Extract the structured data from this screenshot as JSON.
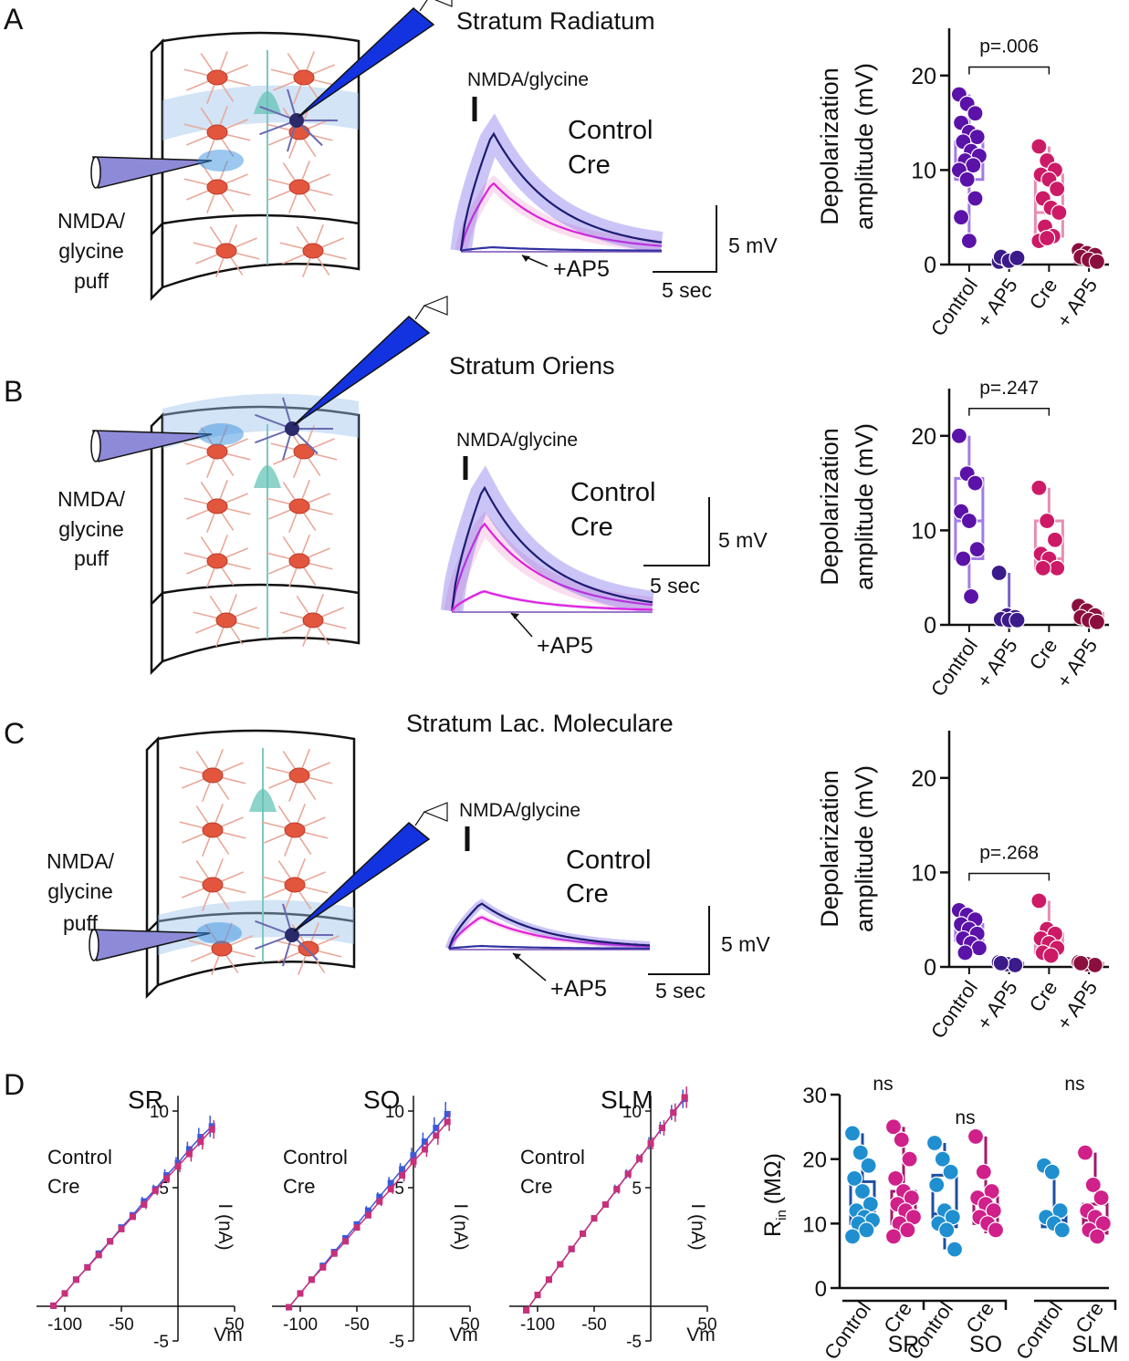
{
  "panels": [
    {
      "letter": "A",
      "title": "Stratum Radiatum",
      "puff": [
        "NMDA/",
        "glycine",
        "puff"
      ],
      "stim": "NMDA/glycine",
      "trace_legend": [
        "Control",
        "Cre"
      ],
      "trace_colors": [
        "#3d1fd8",
        "#e01ee0"
      ],
      "blocker": "+AP5",
      "scale_y": "5 mV",
      "scale_x": "5 sec"
    },
    {
      "letter": "B",
      "title": "Stratum Oriens",
      "puff": [
        "NMDA/",
        "glycine",
        "puff"
      ],
      "stim": "NMDA/glycine",
      "trace_legend": [
        "Control",
        "Cre"
      ],
      "trace_colors": [
        "#3d1fd8",
        "#e01ee0"
      ],
      "blocker": "+AP5",
      "scale_y": "5 mV",
      "scale_x": "5 sec"
    },
    {
      "letter": "C",
      "title": "Stratum Lac. Moleculare",
      "puff": [
        "NMDA/",
        "glycine",
        "puff"
      ],
      "stim": "NMDA/glycine",
      "trace_legend": [
        "Control",
        "Cre"
      ],
      "trace_colors": [
        "#3d1fd8",
        "#e01ee0"
      ],
      "blocker": "+AP5",
      "scale_y": "5 mV",
      "scale_x": "5 sec"
    }
  ],
  "figure_d": {
    "letter": "D"
  },
  "chart_data": [
    {
      "type": "box",
      "y_label": [
        "Depolarization",
        "amplitude (mV)"
      ],
      "ylim": [
        0,
        25
      ],
      "yticks": [
        0,
        10,
        20
      ],
      "annotation": "p=.006",
      "series": [
        {
          "name": "Control",
          "color": "#5b12a8",
          "box_color": "#a27be8",
          "label_color": "#5b16d6",
          "points": [
            18,
            17,
            16,
            15,
            14,
            13.5,
            13,
            12,
            11.5,
            11,
            10.5,
            10,
            9,
            7,
            5,
            2.5
          ],
          "box": {
            "min": 2.5,
            "q1": 9,
            "median": 11,
            "q3": 13,
            "max": 18
          }
        },
        {
          "name": "+ AP5",
          "color": "#3b1a8a",
          "box_color": "#7a62c8",
          "label_color": "#4b1ec2",
          "points": [
            0.3,
            0.5,
            0.6,
            0.8,
            0.4,
            0.7
          ],
          "box": {
            "min": 0.2,
            "q1": 0.4,
            "median": 0.5,
            "q3": 0.7,
            "max": 1
          }
        },
        {
          "name": "Cre",
          "color": "#cc1a66",
          "box_color": "#e58fb4",
          "label_color": "#d6206e",
          "points": [
            12.5,
            11,
            10,
            9.5,
            9,
            8,
            7,
            6,
            5.5,
            4,
            3,
            2.5,
            2.8
          ],
          "box": {
            "min": 2.5,
            "q1": 3,
            "median": 5.5,
            "q3": 9.5,
            "max": 12.5
          }
        },
        {
          "name": "+ AP5",
          "color": "#8a0f3f",
          "box_color": "#c0608a",
          "label_color": "#e0208a",
          "points": [
            1.5,
            1.2,
            1,
            0.8,
            0.5,
            0.3
          ],
          "box": {
            "min": 0.1,
            "q1": 0.2,
            "median": 0.3,
            "q3": 0.4,
            "max": 1.5
          }
        }
      ]
    },
    {
      "type": "box",
      "y_label": [
        "Depolarization",
        "amplitude (mV)"
      ],
      "ylim": [
        0,
        25
      ],
      "yticks": [
        0,
        10,
        20
      ],
      "annotation": "p=.247",
      "series": [
        {
          "name": "Control",
          "color": "#5b12a8",
          "box_color": "#a27be8",
          "label_color": "#5b16d6",
          "points": [
            20,
            16,
            15,
            12,
            11,
            8,
            7,
            3
          ],
          "box": {
            "min": 3,
            "q1": 7,
            "median": 11,
            "q3": 15.5,
            "max": 20
          }
        },
        {
          "name": "+ AP5",
          "color": "#3b1a8a",
          "box_color": "#7a62c8",
          "label_color": "#4b1ec2",
          "points": [
            5.5,
            1,
            0.8,
            0.6,
            0.5,
            0.5
          ],
          "box": {
            "min": 0.3,
            "q1": 0.5,
            "median": 0.7,
            "q3": 0.9,
            "max": 5.5
          }
        },
        {
          "name": "Cre",
          "color": "#cc1a66",
          "box_color": "#e58fb4",
          "label_color": "#d6206e",
          "points": [
            14.5,
            11,
            9,
            7.5,
            7,
            6,
            6
          ],
          "box": {
            "min": 5.5,
            "q1": 6,
            "median": 7,
            "q3": 11,
            "max": 14.5
          }
        },
        {
          "name": "+ AP5",
          "color": "#8a0f3f",
          "box_color": "#c0608a",
          "label_color": "#e0208a",
          "points": [
            2,
            1.5,
            1,
            0.8,
            0.5,
            0.3
          ],
          "box": {
            "min": 0.2,
            "q1": 0.3,
            "median": 0.6,
            "q3": 1.2,
            "max": 2
          }
        }
      ]
    },
    {
      "type": "box",
      "y_label": [
        "Depolarization",
        "amplitude (mV)"
      ],
      "ylim": [
        0,
        25
      ],
      "yticks": [
        0,
        10,
        20
      ],
      "annotation": "p=.268",
      "series": [
        {
          "name": "Control",
          "color": "#5b12a8",
          "box_color": "#a27be8",
          "label_color": "#5b16d6",
          "points": [
            6,
            5.5,
            5,
            4.5,
            4,
            3.5,
            3,
            2.5,
            2,
            1.5
          ],
          "box": {
            "min": 1.5,
            "q1": 2.8,
            "median": 3.5,
            "q3": 4.5,
            "max": 6
          }
        },
        {
          "name": "+ AP5",
          "color": "#3b1a8a",
          "box_color": "#7a62c8",
          "label_color": "#4b1ec2",
          "points": [
            0.5,
            0.3,
            0.2,
            0.4
          ],
          "box": {
            "min": 0.1,
            "q1": 0.2,
            "median": 0.3,
            "q3": 0.4,
            "max": 0.5
          }
        },
        {
          "name": "Cre",
          "color": "#cc1a66",
          "box_color": "#e58fb4",
          "label_color": "#d6206e",
          "points": [
            7,
            4,
            3.5,
            3,
            2.5,
            2,
            1.5,
            1.2
          ],
          "box": {
            "min": 1,
            "q1": 1.5,
            "median": 2.5,
            "q3": 3.5,
            "max": 7
          }
        },
        {
          "name": "+ AP5",
          "color": "#8a0f3f",
          "box_color": "#c0608a",
          "label_color": "#e0208a",
          "points": [
            0.5,
            0.3,
            0.2,
            0.4
          ],
          "box": {
            "min": 0.1,
            "q1": 0.2,
            "median": 0.3,
            "q3": 0.4,
            "max": 0.5
          }
        }
      ]
    },
    {
      "type": "iv",
      "title": "SR",
      "x_label": "Vm",
      "y_label": "I (nA)",
      "xlim": [
        -125,
        50
      ],
      "ylim": [
        -5,
        11
      ],
      "xticks": [
        -100,
        -50,
        50
      ],
      "yticks": [
        -5,
        5,
        10
      ],
      "x": [
        -110,
        -100,
        -90,
        -80,
        -70,
        -60,
        -50,
        -40,
        -30,
        -20,
        -10,
        0,
        10,
        20,
        30
      ],
      "series": [
        {
          "name": "Control",
          "color": "#3a5ad8",
          "values": [
            -2.7,
            -1.9,
            -1.0,
            -0.2,
            0.7,
            1.5,
            2.4,
            3.2,
            4.1,
            4.9,
            5.8,
            6.6,
            7.5,
            8.3,
            9.0
          ],
          "errors": [
            0.1,
            0.1,
            0.1,
            0.1,
            0.1,
            0.2,
            0.2,
            0.2,
            0.3,
            0.3,
            0.4,
            0.4,
            0.5,
            0.6,
            0.7
          ]
        },
        {
          "name": "Cre",
          "color": "#c8307a",
          "values": [
            -2.7,
            -1.9,
            -1.0,
            -0.2,
            0.6,
            1.5,
            2.3,
            3.1,
            3.9,
            4.8,
            5.6,
            6.4,
            7.2,
            8.0,
            8.8
          ],
          "errors": [
            0.1,
            0.1,
            0.1,
            0.1,
            0.1,
            0.2,
            0.2,
            0.2,
            0.3,
            0.3,
            0.3,
            0.4,
            0.5,
            0.5,
            0.6
          ]
        }
      ]
    },
    {
      "type": "iv",
      "title": "SO",
      "x_label": "Vm",
      "y_label": "I (nA)",
      "xlim": [
        -125,
        50
      ],
      "ylim": [
        -5,
        11
      ],
      "xticks": [
        -100,
        -50,
        50
      ],
      "yticks": [
        -5,
        5,
        10
      ],
      "x": [
        -110,
        -100,
        -90,
        -80,
        -70,
        -60,
        -50,
        -40,
        -30,
        -20,
        -10,
        0,
        10,
        20,
        30
      ],
      "series": [
        {
          "name": "Control",
          "color": "#3a5ad8",
          "values": [
            -2.8,
            -1.9,
            -1.0,
            -0.1,
            0.8,
            1.7,
            2.6,
            3.5,
            4.4,
            5.3,
            6.2,
            7.1,
            8.0,
            8.9,
            9.8
          ],
          "errors": [
            0.2,
            0.1,
            0.1,
            0.1,
            0.1,
            0.2,
            0.2,
            0.3,
            0.3,
            0.4,
            0.4,
            0.5,
            0.6,
            0.7,
            0.8
          ]
        },
        {
          "name": "Cre",
          "color": "#c8307a",
          "values": [
            -2.8,
            -1.9,
            -1.0,
            -0.2,
            0.7,
            1.5,
            2.4,
            3.2,
            4.1,
            4.9,
            5.8,
            6.7,
            7.5,
            8.4,
            9.3
          ],
          "errors": [
            0.1,
            0.1,
            0.1,
            0.1,
            0.1,
            0.2,
            0.2,
            0.2,
            0.3,
            0.3,
            0.4,
            0.4,
            0.5,
            0.6,
            0.6
          ]
        }
      ]
    },
    {
      "type": "iv",
      "title": "SLM",
      "x_label": "Vm",
      "y_label": "I (nA)",
      "xlim": [
        -125,
        50
      ],
      "ylim": [
        -5,
        11
      ],
      "xticks": [
        -100,
        -50,
        50
      ],
      "yticks": [
        -5,
        5,
        10
      ],
      "x": [
        -110,
        -100,
        -90,
        -80,
        -70,
        -60,
        -50,
        -40,
        -30,
        -20,
        -10,
        0,
        10,
        20,
        30
      ],
      "series": [
        {
          "name": "Control",
          "color": "#3a5ad8",
          "values": [
            -3.0,
            -2.0,
            -1.0,
            0.0,
            1.0,
            2.0,
            3.0,
            3.9,
            4.9,
            5.9,
            6.9,
            7.9,
            8.9,
            9.9,
            10.8
          ],
          "errors": [
            0.1,
            0.1,
            0.1,
            0.1,
            0.1,
            0.2,
            0.2,
            0.2,
            0.3,
            0.3,
            0.3,
            0.4,
            0.4,
            0.5,
            0.6
          ]
        },
        {
          "name": "Cre",
          "color": "#c8307a",
          "values": [
            -3.0,
            -2.0,
            -1.0,
            0.0,
            1.0,
            2.0,
            3.0,
            3.9,
            4.9,
            5.9,
            6.9,
            7.9,
            8.9,
            9.9,
            10.9
          ],
          "errors": [
            0.1,
            0.1,
            0.1,
            0.1,
            0.1,
            0.2,
            0.2,
            0.2,
            0.3,
            0.3,
            0.3,
            0.4,
            0.5,
            0.6,
            0.7
          ]
        }
      ]
    },
    {
      "type": "grouped_box",
      "y_label": {
        "main": "R",
        "sub": "in",
        "unit": "(MΩ)"
      },
      "ylim": [
        0,
        30
      ],
      "yticks": [
        0,
        10,
        20,
        30
      ],
      "groups": [
        {
          "name": "SR",
          "annotation": "ns",
          "series": [
            {
              "name": "Control",
              "color": "#1f8fd0",
              "box_color": "#1e4fa0",
              "label_color": "#1f4fa8",
              "points": [
                24,
                21,
                19,
                17,
                15,
                13,
                12,
                11,
                10.5,
                10,
                9,
                8
              ],
              "box": {
                "min": 8,
                "q1": 10,
                "median": 11,
                "q3": 16.5,
                "max": 24
              }
            },
            {
              "name": "Cre",
              "color": "#d0208a",
              "box_color": "#a01a6a",
              "label_color": "#a0185e",
              "points": [
                25,
                23,
                20,
                17,
                15,
                14,
                13,
                12,
                11,
                10,
                9,
                8
              ],
              "box": {
                "min": 8,
                "q1": 10,
                "median": 12,
                "q3": 15,
                "max": 25
              }
            }
          ]
        },
        {
          "name": "SO",
          "annotation": "ns",
          "series": [
            {
              "name": "Control",
              "color": "#1f8fd0",
              "box_color": "#1e4fa0",
              "label_color": "#1f4fa8",
              "points": [
                22.5,
                20,
                18,
                16,
                12,
                11,
                10,
                9,
                6
              ],
              "box": {
                "min": 6,
                "q1": 9.5,
                "median": 11.5,
                "q3": 17.5,
                "max": 22.5
              }
            },
            {
              "name": "Cre",
              "color": "#d0208a",
              "box_color": "#a01a6a",
              "label_color": "#a0185e",
              "points": [
                23.5,
                18,
                15,
                14,
                13,
                12,
                11,
                10,
                9
              ],
              "box": {
                "min": 8.5,
                "q1": 10,
                "median": 12,
                "q3": 14.5,
                "max": 23.5
              }
            }
          ]
        },
        {
          "name": "SLM",
          "annotation": "ns",
          "series": [
            {
              "name": "Control",
              "color": "#1f8fd0",
              "box_color": "#1e4fa0",
              "label_color": "#1f4fa8",
              "points": [
                19,
                18,
                12,
                11,
                10,
                9
              ],
              "box": {
                "min": 9,
                "q1": 9.5,
                "median": 10.5,
                "q3": 11.5,
                "max": 19
              }
            },
            {
              "name": "Cre",
              "color": "#d0208a",
              "box_color": "#a01a6a",
              "label_color": "#a0185e",
              "points": [
                21,
                16,
                14,
                12,
                11,
                10,
                9,
                8
              ],
              "box": {
                "min": 7,
                "q1": 8.5,
                "median": 10.5,
                "q3": 13,
                "max": 21
              }
            }
          ]
        }
      ]
    }
  ]
}
